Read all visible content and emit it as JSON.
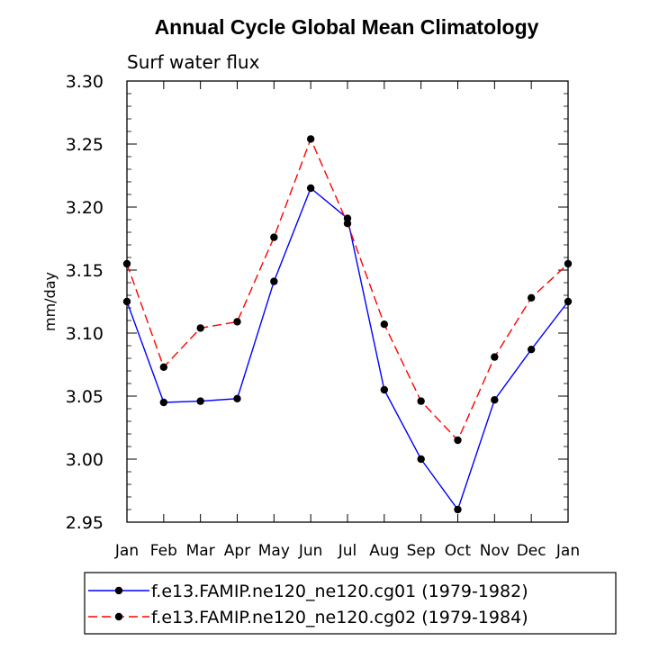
{
  "chart_data": {
    "type": "line",
    "title": "Annual Cycle Global Mean Climatology",
    "subtitle": "Surf water flux",
    "xlabel": "",
    "ylabel": "mm/day",
    "categories": [
      "Jan",
      "Feb",
      "Mar",
      "Apr",
      "May",
      "Jun",
      "Jul",
      "Aug",
      "Sep",
      "Oct",
      "Nov",
      "Dec",
      "Jan"
    ],
    "ylim": [
      2.95,
      3.3
    ],
    "yticks": [
      "2.95",
      "3.00",
      "3.05",
      "3.10",
      "3.15",
      "3.20",
      "3.25",
      "3.30"
    ],
    "grid": false,
    "legend_position": "bottom",
    "series": [
      {
        "name": "f.e13.FAMIP.ne120_ne120.cg01 (1979-1982)",
        "color": "#0000ff",
        "dash": "solid",
        "values": [
          3.125,
          3.045,
          3.046,
          3.048,
          3.141,
          3.215,
          3.191,
          3.055,
          3.0,
          2.96,
          3.047,
          3.087,
          3.125
        ]
      },
      {
        "name": "f.e13.FAMIP.ne120_ne120.cg02 (1979-1984)",
        "color": "#ff0000",
        "dash": "dashed",
        "values": [
          3.155,
          3.073,
          3.104,
          3.109,
          3.176,
          3.254,
          3.187,
          3.107,
          3.046,
          3.015,
          3.081,
          3.128,
          3.155
        ]
      }
    ]
  }
}
